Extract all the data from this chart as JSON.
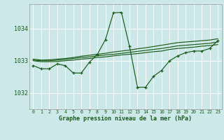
{
  "title": "Graphe pression niveau de la mer (hPa)",
  "bg_color": "#cce8e8",
  "grid_color": "#ffffff",
  "line_color": "#1a5c1a",
  "xlim": [
    -0.5,
    23.5
  ],
  "ylim": [
    1031.5,
    1034.75
  ],
  "yticks": [
    1032,
    1033,
    1034
  ],
  "xticks": [
    0,
    1,
    2,
    3,
    4,
    5,
    6,
    7,
    8,
    9,
    10,
    11,
    12,
    13,
    14,
    15,
    16,
    17,
    18,
    19,
    20,
    21,
    22,
    23
  ],
  "main_series": [
    1032.85,
    1032.75,
    1032.75,
    1032.9,
    1032.85,
    1032.62,
    1032.62,
    1032.95,
    1033.2,
    1033.65,
    1034.48,
    1034.5,
    1033.45,
    1032.18,
    1032.18,
    1032.52,
    1032.7,
    1033.0,
    1033.15,
    1033.25,
    1033.3,
    1033.3,
    1033.38,
    1033.62
  ],
  "trend1": [
    1033.0,
    1032.97,
    1032.97,
    1032.98,
    1033.0,
    1033.02,
    1033.05,
    1033.07,
    1033.1,
    1033.12,
    1033.15,
    1033.18,
    1033.2,
    1033.22,
    1033.25,
    1033.28,
    1033.3,
    1033.35,
    1033.38,
    1033.4,
    1033.42,
    1033.45,
    1033.47,
    1033.5
  ],
  "trend2": [
    1033.02,
    1033.0,
    1033.0,
    1033.02,
    1033.04,
    1033.07,
    1033.1,
    1033.12,
    1033.15,
    1033.18,
    1033.2,
    1033.23,
    1033.26,
    1033.29,
    1033.32,
    1033.35,
    1033.38,
    1033.42,
    1033.46,
    1033.48,
    1033.5,
    1033.52,
    1033.54,
    1033.58
  ],
  "trend3": [
    1033.05,
    1033.02,
    1033.03,
    1033.05,
    1033.07,
    1033.1,
    1033.14,
    1033.17,
    1033.2,
    1033.23,
    1033.27,
    1033.3,
    1033.33,
    1033.37,
    1033.4,
    1033.44,
    1033.48,
    1033.52,
    1033.56,
    1033.58,
    1033.6,
    1033.62,
    1033.64,
    1033.68
  ]
}
